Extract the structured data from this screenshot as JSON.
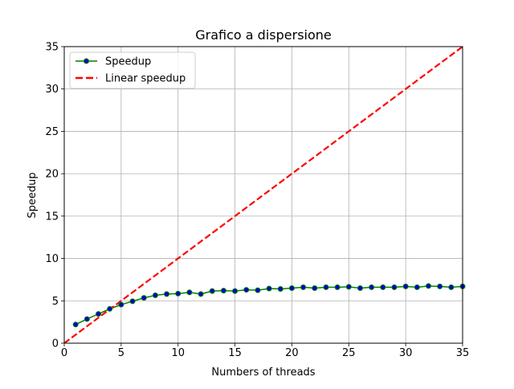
{
  "chart_data": {
    "type": "line",
    "title": "Grafico a dispersione",
    "xlabel": "Numbers of threads",
    "ylabel": "Speedup",
    "xlim": [
      0,
      35
    ],
    "ylim": [
      0,
      35
    ],
    "xticks": [
      0,
      5,
      10,
      15,
      20,
      25,
      30,
      35
    ],
    "yticks": [
      0,
      5,
      10,
      15,
      20,
      25,
      30,
      35
    ],
    "grid": true,
    "legend_position": "top-left",
    "series": [
      {
        "name": "Speedup",
        "style": "solid line with circle markers",
        "line_color": "#008000",
        "marker_color": "#0000cd",
        "x": [
          1,
          2,
          3,
          4,
          5,
          6,
          7,
          8,
          9,
          10,
          11,
          12,
          13,
          14,
          15,
          16,
          17,
          18,
          19,
          20,
          21,
          22,
          23,
          24,
          25,
          26,
          27,
          28,
          29,
          30,
          31,
          32,
          33,
          34,
          35
        ],
        "y": [
          2.2,
          2.85,
          3.45,
          4.05,
          4.55,
          4.95,
          5.35,
          5.65,
          5.8,
          5.85,
          6.0,
          5.8,
          6.15,
          6.2,
          6.15,
          6.3,
          6.25,
          6.45,
          6.4,
          6.5,
          6.6,
          6.5,
          6.6,
          6.6,
          6.65,
          6.5,
          6.6,
          6.6,
          6.6,
          6.7,
          6.6,
          6.75,
          6.7,
          6.6,
          6.7
        ]
      },
      {
        "name": "Linear speedup",
        "style": "dashed line",
        "line_color": "#ff0000",
        "x": [
          0,
          35
        ],
        "y": [
          0,
          35
        ]
      }
    ]
  }
}
